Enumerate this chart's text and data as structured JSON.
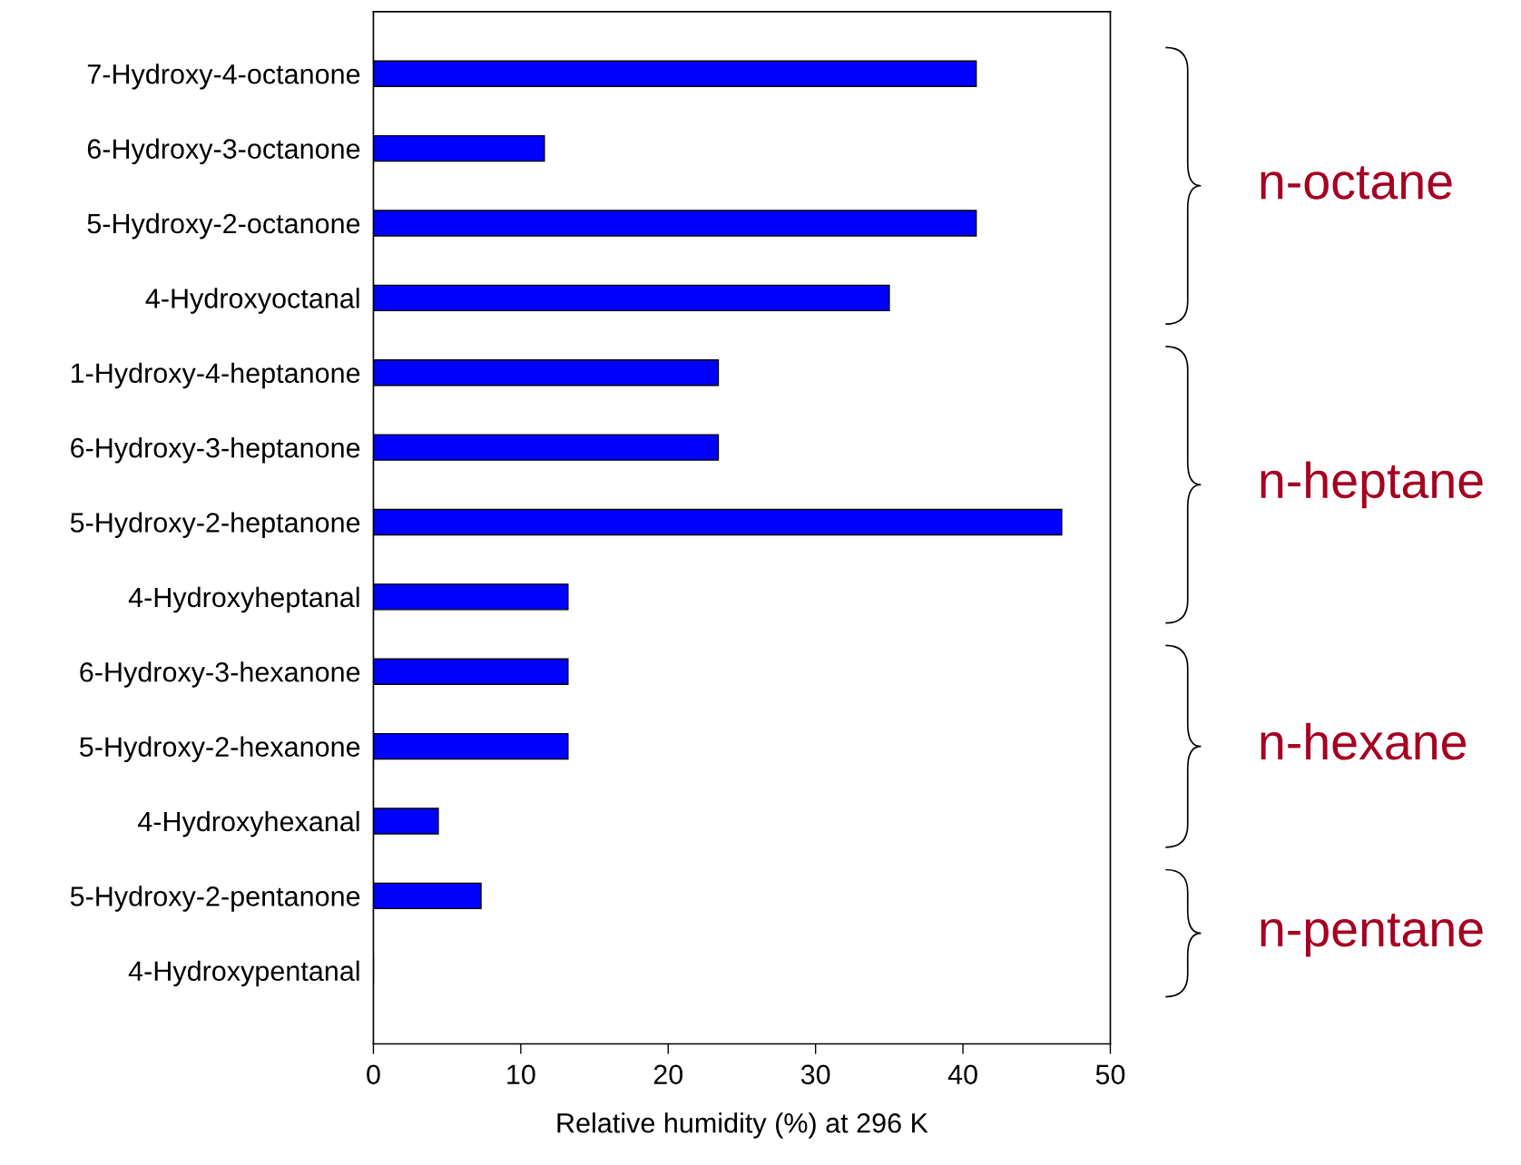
{
  "chart_data": {
    "type": "bar",
    "orientation": "horizontal",
    "categories": [
      "7-Hydroxy-4-octanone",
      "6-Hydroxy-3-octanone",
      "5-Hydroxy-2-octanone",
      "4-Hydroxyoctanal",
      "1-Hydroxy-4-heptanone",
      "6-Hydroxy-3-heptanone",
      "5-Hydroxy-2-heptanone",
      "4-Hydroxyheptanal",
      "6-Hydroxy-3-hexanone",
      "5-Hydroxy-2-hexanone",
      "4-Hydroxyhexanal",
      "5-Hydroxy-2-pentanone",
      "4-Hydroxypentanal"
    ],
    "values": [
      40.9,
      11.6,
      40.9,
      35.0,
      23.4,
      23.4,
      46.7,
      13.2,
      13.2,
      13.2,
      4.4,
      7.3,
      0
    ],
    "color": "#0000ff",
    "xlim": [
      0,
      50
    ],
    "xticks": [
      0,
      10,
      20,
      30,
      40,
      50
    ],
    "xlabel": "Relative humidity (%) at 296 K",
    "grid": false,
    "annotations": [
      "n-octane",
      "n-heptane",
      "n-hexane",
      "n-pentane"
    ]
  }
}
